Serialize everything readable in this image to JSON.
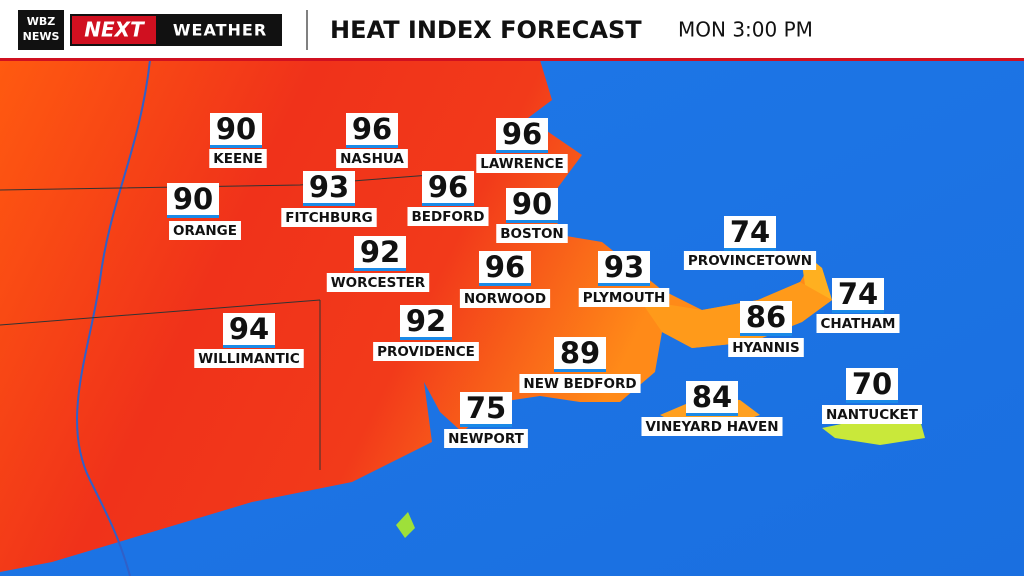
{
  "header": {
    "logo_top": "WBZ",
    "logo_bottom": "NEWS",
    "brand_next": "NEXT",
    "brand_weather": "WEATHER",
    "title": "HEAT INDEX FORECAST",
    "time": "MON 3:00 PM"
  },
  "cities": [
    {
      "name": "KEENE",
      "value": "90"
    },
    {
      "name": "NASHUA",
      "value": "96"
    },
    {
      "name": "LAWRENCE",
      "value": "96"
    },
    {
      "name": "ORANGE",
      "value": "90"
    },
    {
      "name": "FITCHBURG",
      "value": "93"
    },
    {
      "name": "BEDFORD",
      "value": "96"
    },
    {
      "name": "BOSTON",
      "value": "90"
    },
    {
      "name": "WORCESTER",
      "value": "92"
    },
    {
      "name": "NORWOOD",
      "value": "96"
    },
    {
      "name": "PLYMOUTH",
      "value": "93"
    },
    {
      "name": "PROVINCETOWN",
      "value": "74"
    },
    {
      "name": "CHATHAM",
      "value": "74"
    },
    {
      "name": "HYANNIS",
      "value": "86"
    },
    {
      "name": "WILLIMANTIC",
      "value": "94"
    },
    {
      "name": "PROVIDENCE",
      "value": "92"
    },
    {
      "name": "NEW BEDFORD",
      "value": "89"
    },
    {
      "name": "NEWPORT",
      "value": "75"
    },
    {
      "name": "VINEYARD HAVEN",
      "value": "84"
    },
    {
      "name": "NANTUCKET",
      "value": "70"
    }
  ]
}
